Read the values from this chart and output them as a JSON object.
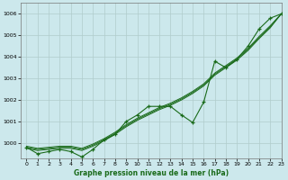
{
  "xlabel": "Graphe pression niveau de la mer (hPa)",
  "xlim": [
    -0.5,
    23
  ],
  "ylim": [
    999.3,
    1006.5
  ],
  "yticks": [
    1000,
    1001,
    1002,
    1003,
    1004,
    1005,
    1006
  ],
  "xticks": [
    0,
    1,
    2,
    3,
    4,
    5,
    6,
    7,
    8,
    9,
    10,
    11,
    12,
    13,
    14,
    15,
    16,
    17,
    18,
    19,
    20,
    21,
    22,
    23
  ],
  "background_color": "#cce8ec",
  "grid_color": "#b0cccc",
  "line_color": "#1a6b1a",
  "series_main": [
    999.8,
    999.5,
    999.6,
    999.7,
    999.6,
    999.35,
    999.7,
    1000.15,
    1000.4,
    1001.0,
    1001.3,
    1001.7,
    1001.7,
    1001.7,
    1001.3,
    1000.95,
    1001.9,
    1003.8,
    1003.5,
    1003.9,
    1004.5,
    1005.3,
    1005.8,
    1006.0
  ],
  "series_smooth1": [
    999.75,
    999.65,
    999.7,
    999.75,
    999.75,
    999.65,
    999.85,
    1000.1,
    1000.4,
    1000.75,
    1001.05,
    1001.3,
    1001.55,
    1001.75,
    1002.0,
    1002.3,
    1002.65,
    1003.15,
    1003.5,
    1003.85,
    1004.3,
    1004.85,
    1005.35,
    1006.0
  ],
  "series_smooth2": [
    999.8,
    999.7,
    999.75,
    999.8,
    999.8,
    999.7,
    999.9,
    1000.15,
    1000.45,
    1000.8,
    1001.1,
    1001.35,
    1001.6,
    1001.8,
    1002.05,
    1002.35,
    1002.7,
    1003.2,
    1003.55,
    1003.9,
    1004.35,
    1004.9,
    1005.4,
    1006.0
  ],
  "series_smooth3": [
    999.85,
    999.75,
    999.8,
    999.85,
    999.85,
    999.75,
    999.95,
    1000.2,
    1000.5,
    1000.85,
    1001.15,
    1001.4,
    1001.65,
    1001.85,
    1002.1,
    1002.4,
    1002.75,
    1003.25,
    1003.6,
    1003.95,
    1004.4,
    1004.95,
    1005.45,
    1006.0
  ]
}
